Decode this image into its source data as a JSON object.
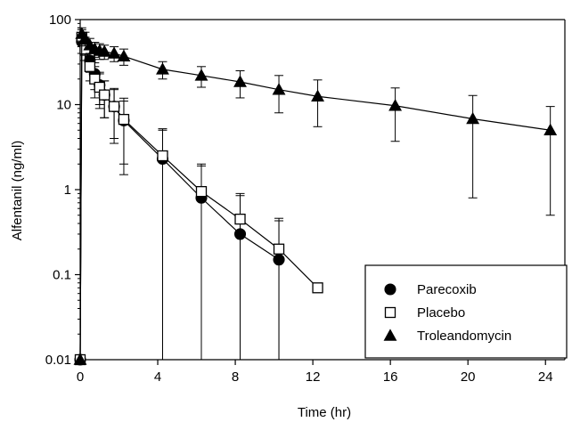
{
  "chart_data": {
    "type": "line",
    "xlabel": "Time (hr)",
    "ylabel": "Alfentanil (ng/ml)",
    "xlim": [
      0,
      25
    ],
    "ylim": [
      0.01,
      100
    ],
    "yscale": "log",
    "xticks": [
      "0",
      "4",
      "8",
      "12",
      "16",
      "20",
      "24"
    ],
    "yticks": [
      "0.01",
      "0.1",
      "1",
      "10",
      "100"
    ],
    "legend_position": "bottom-right",
    "series": [
      {
        "name": "Parecoxib",
        "marker": "filled-circle",
        "color": "#000000",
        "points": [
          {
            "x": 0,
            "y": 0.01
          },
          {
            "x": 0.083,
            "y": 55,
            "err": 15
          },
          {
            "x": 0.25,
            "y": 50,
            "err": 12
          },
          {
            "x": 0.5,
            "y": 33,
            "err": 9
          },
          {
            "x": 0.75,
            "y": 23,
            "err": 8
          },
          {
            "x": 1,
            "y": 17,
            "err": 7
          },
          {
            "x": 1.25,
            "y": 13,
            "err": 6
          },
          {
            "x": 1.75,
            "y": 9.5,
            "err": 5.5
          },
          {
            "x": 2.25,
            "y": 6.5,
            "err": 4.5
          },
          {
            "x": 4.25,
            "y": 2.3,
            "err": 2.7
          },
          {
            "x": 6.25,
            "y": 0.8,
            "err": 1.1
          },
          {
            "x": 8.25,
            "y": 0.3,
            "err": 0.55
          },
          {
            "x": 10.25,
            "y": 0.15,
            "err": 0.28
          }
        ]
      },
      {
        "name": "Placebo",
        "marker": "open-square",
        "color": "#000000",
        "points": [
          {
            "x": 0,
            "y": 0.01
          },
          {
            "x": 0.083,
            "y": 62,
            "err": 14
          },
          {
            "x": 0.25,
            "y": 45,
            "err": 12
          },
          {
            "x": 0.5,
            "y": 28,
            "err": 9
          },
          {
            "x": 0.75,
            "y": 20,
            "err": 8
          },
          {
            "x": 1,
            "y": 16,
            "err": 7
          },
          {
            "x": 1.25,
            "y": 13,
            "err": 6
          },
          {
            "x": 1.75,
            "y": 9.5,
            "err": 6
          },
          {
            "x": 2.25,
            "y": 6.7,
            "err": 5.2
          },
          {
            "x": 4.25,
            "y": 2.5,
            "err": 2.7
          },
          {
            "x": 6.25,
            "y": 0.95,
            "err": 1.05
          },
          {
            "x": 8.25,
            "y": 0.45,
            "err": 0.45
          },
          {
            "x": 10.25,
            "y": 0.2,
            "err": 0.26
          },
          {
            "x": 12.25,
            "y": 0.07
          }
        ]
      },
      {
        "name": "Troleandomycin",
        "marker": "filled-triangle",
        "color": "#000000",
        "points": [
          {
            "x": 0,
            "y": 0.01
          },
          {
            "x": 0.083,
            "y": 68,
            "err": 12
          },
          {
            "x": 0.25,
            "y": 60,
            "err": 11
          },
          {
            "x": 0.5,
            "y": 50,
            "err": 10
          },
          {
            "x": 0.75,
            "y": 45,
            "err": 9
          },
          {
            "x": 1,
            "y": 43,
            "err": 9
          },
          {
            "x": 1.25,
            "y": 42,
            "err": 8
          },
          {
            "x": 1.75,
            "y": 40,
            "err": 8
          },
          {
            "x": 2.25,
            "y": 37,
            "err": 8
          },
          {
            "x": 4.25,
            "y": 26,
            "err": 6
          },
          {
            "x": 6.25,
            "y": 22,
            "err": 6
          },
          {
            "x": 8.25,
            "y": 18.5,
            "err": 6.5
          },
          {
            "x": 10.25,
            "y": 15,
            "err": 7
          },
          {
            "x": 12.25,
            "y": 12.5,
            "err": 7
          },
          {
            "x": 16.25,
            "y": 9.7,
            "err": 6
          },
          {
            "x": 20.25,
            "y": 6.8,
            "err": 6
          },
          {
            "x": 24.25,
            "y": 5,
            "err": 4.5
          }
        ]
      }
    ]
  }
}
